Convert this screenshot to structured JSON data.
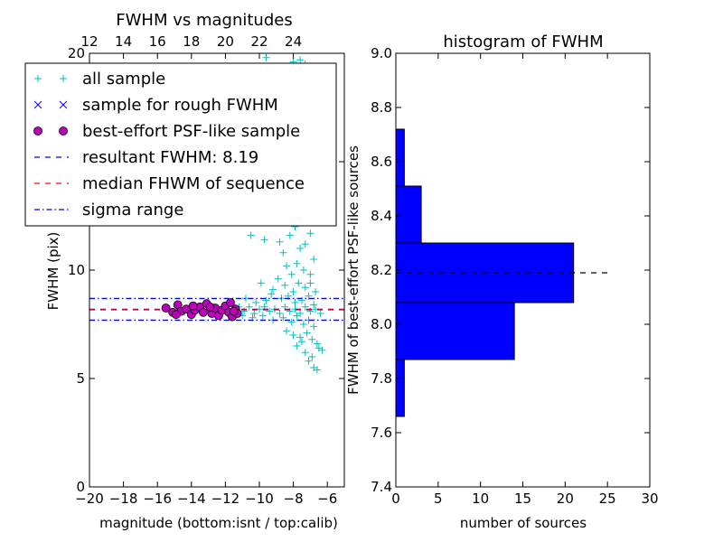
{
  "figure": {
    "background": "#ffffff"
  },
  "chart_data": [
    {
      "type": "scatter",
      "title": "FWHM vs magnitudes",
      "xlabel": "magnitude (bottom:isnt / top:calib)",
      "ylabel": "FWHM (pix)",
      "xlim": [
        -20,
        -5
      ],
      "ylim": [
        0,
        20
      ],
      "xticks": [
        -20,
        -18,
        -16,
        -14,
        -12,
        -10,
        -8,
        -6
      ],
      "xtick_labels": [
        "−20",
        "−18",
        "−16",
        "−14",
        "−12",
        "−10",
        "−8",
        "−6"
      ],
      "yticks": [
        0,
        5,
        10,
        15,
        20
      ],
      "ytick_labels": [
        "0",
        "5",
        "10",
        "15",
        "20"
      ],
      "top_axis": {
        "offset_from_bottom": 32,
        "ticks": [
          12,
          14,
          16,
          18,
          20,
          22,
          24
        ],
        "tick_labels": [
          "12",
          "14",
          "16",
          "18",
          "20",
          "22",
          "24"
        ]
      },
      "grid": false,
      "legend_position": "upper-left",
      "legend": [
        {
          "label": "all sample",
          "marker": "plus",
          "color": "#00bfbf"
        },
        {
          "label": "sample for rough FWHM",
          "marker": "x",
          "color": "#0000ff"
        },
        {
          "label": "best-effort PSF-like sample",
          "marker": "circle",
          "color": "#bf00bf"
        },
        {
          "label": "resultant FWHM: 8.19",
          "marker": "dashed-line",
          "color": "#0000ff"
        },
        {
          "label": "median FHWM of sequence",
          "marker": "dashed-line",
          "color": "#ff0000"
        },
        {
          "label": "sigma range",
          "marker": "dashdot-line",
          "color": "#0000ff"
        }
      ],
      "series": [
        {
          "name": "all sample",
          "marker": "plus",
          "color": "#00bfbf",
          "points": [
            [
              -9.8,
              19.2
            ],
            [
              -9.6,
              19.8
            ],
            [
              -9.1,
              19.4
            ],
            [
              -8.7,
              18.6
            ],
            [
              -8.2,
              19.0
            ],
            [
              -8.0,
              19.6
            ],
            [
              -7.6,
              19.7
            ],
            [
              -7.3,
              19.5
            ],
            [
              -7.1,
              19.3
            ],
            [
              -9.5,
              16.6
            ],
            [
              -9.0,
              15.0
            ],
            [
              -8.8,
              14.6
            ],
            [
              -7.9,
              15.4
            ],
            [
              -7.7,
              14.3
            ],
            [
              -7.4,
              13.2
            ],
            [
              -6.8,
              14.6
            ],
            [
              -7.2,
              15.8
            ],
            [
              -6.9,
              13.4
            ],
            [
              -10.5,
              11.6
            ],
            [
              -9.7,
              11.4
            ],
            [
              -8.8,
              11.3
            ],
            [
              -8.2,
              11.6
            ],
            [
              -8.6,
              10.8
            ],
            [
              -7.9,
              12.0
            ],
            [
              -7.5,
              12.4
            ],
            [
              -7.2,
              13.0
            ],
            [
              -6.9,
              12.4
            ],
            [
              -7.0,
              11.7
            ],
            [
              -7.3,
              11.2
            ],
            [
              -7.6,
              11.0
            ],
            [
              -8.4,
              10.2
            ],
            [
              -8.1,
              9.8
            ],
            [
              -7.8,
              10.3
            ],
            [
              -7.4,
              10.0
            ],
            [
              -7.0,
              9.8
            ],
            [
              -6.8,
              10.5
            ],
            [
              -9.9,
              9.4
            ],
            [
              -9.2,
              9.1
            ],
            [
              -8.9,
              9.6
            ],
            [
              -8.5,
              9.3
            ],
            [
              -8.0,
              9.0
            ],
            [
              -7.7,
              9.4
            ],
            [
              -7.3,
              9.2
            ],
            [
              -7.0,
              9.4
            ],
            [
              -6.7,
              9.0
            ],
            [
              -10.8,
              8.7
            ],
            [
              -10.2,
              8.5
            ],
            [
              -9.6,
              8.6
            ],
            [
              -9.3,
              8.9
            ],
            [
              -8.7,
              8.7
            ],
            [
              -8.3,
              8.8
            ],
            [
              -7.9,
              8.5
            ],
            [
              -7.5,
              8.6
            ],
            [
              -7.1,
              8.8
            ],
            [
              -6.8,
              8.4
            ],
            [
              -11.2,
              8.3
            ],
            [
              -10.9,
              8.1
            ],
            [
              -10.6,
              8.3
            ],
            [
              -10.3,
              8.0
            ],
            [
              -10.0,
              8.2
            ],
            [
              -9.7,
              8.3
            ],
            [
              -9.4,
              8.1
            ],
            [
              -9.1,
              8.2
            ],
            [
              -8.8,
              8.0
            ],
            [
              -8.5,
              8.3
            ],
            [
              -8.2,
              8.1
            ],
            [
              -7.9,
              8.2
            ],
            [
              -7.6,
              8.0
            ],
            [
              -7.3,
              8.3
            ],
            [
              -7.0,
              8.1
            ],
            [
              -6.7,
              8.2
            ],
            [
              -6.4,
              8.0
            ],
            [
              -11.0,
              7.9
            ],
            [
              -10.4,
              7.8
            ],
            [
              -9.8,
              7.9
            ],
            [
              -9.2,
              7.7
            ],
            [
              -8.6,
              7.8
            ],
            [
              -8.1,
              7.6
            ],
            [
              -7.8,
              7.9
            ],
            [
              -7.4,
              7.5
            ],
            [
              -7.1,
              7.7
            ],
            [
              -6.8,
              7.4
            ],
            [
              -8.4,
              7.2
            ],
            [
              -8.0,
              7.0
            ],
            [
              -7.6,
              6.9
            ],
            [
              -7.2,
              7.1
            ],
            [
              -6.9,
              6.8
            ],
            [
              -6.6,
              6.6
            ],
            [
              -7.8,
              6.5
            ],
            [
              -7.3,
              6.2
            ],
            [
              -6.9,
              6.0
            ],
            [
              -6.5,
              6.4
            ],
            [
              -7.1,
              5.8
            ],
            [
              -6.8,
              5.5
            ],
            [
              -6.6,
              5.4
            ],
            [
              -7.5,
              6.7
            ],
            [
              -6.3,
              6.3
            ],
            [
              -13.0,
              8.4
            ],
            [
              -12.2,
              8.0
            ],
            [
              -14.4,
              8.1
            ],
            [
              -15.5,
              8.3
            ]
          ]
        },
        {
          "name": "best-effort PSF-like sample",
          "marker": "circle",
          "color": "#bf00bf",
          "points": [
            [
              -15.5,
              8.25
            ],
            [
              -15.1,
              8.05
            ],
            [
              -14.8,
              8.4
            ],
            [
              -14.6,
              8.1
            ],
            [
              -14.3,
              8.2
            ],
            [
              -14.0,
              7.95
            ],
            [
              -13.8,
              8.15
            ],
            [
              -13.5,
              8.3
            ],
            [
              -13.3,
              8.05
            ],
            [
              -13.1,
              8.45
            ],
            [
              -12.8,
              8.0
            ],
            [
              -12.6,
              8.25
            ],
            [
              -12.4,
              7.9
            ],
            [
              -12.2,
              8.15
            ],
            [
              -12.0,
              8.35
            ],
            [
              -11.8,
              8.05
            ],
            [
              -11.7,
              8.5
            ],
            [
              -11.6,
              7.85
            ],
            [
              -11.4,
              8.2
            ],
            [
              -11.3,
              8.0
            ],
            [
              -13.9,
              8.35
            ],
            [
              -14.9,
              7.95
            ],
            [
              -12.9,
              8.3
            ],
            [
              -11.5,
              8.1
            ]
          ]
        }
      ],
      "hlines": [
        {
          "name": "resultant FWHM: 8.19",
          "y": 8.19,
          "color": "#0000ff",
          "style": "dashed"
        },
        {
          "name": "median FHWM of sequence",
          "y": 8.17,
          "color": "#ff0000",
          "style": "dashed"
        },
        {
          "name": "sigma range",
          "y": 8.69,
          "color": "#0000ff",
          "style": "dashdot"
        },
        {
          "name": "sigma range",
          "y": 7.69,
          "color": "#0000ff",
          "style": "dashdot"
        }
      ]
    },
    {
      "type": "bar",
      "orientation": "horizontal",
      "title": "histogram of FWHM",
      "xlabel": "number of sources",
      "ylabel": "FWHM of best-effort PSF-like sources",
      "xlim": [
        0,
        30
      ],
      "ylim": [
        7.4,
        9.0
      ],
      "xticks": [
        0,
        5,
        10,
        15,
        20,
        25,
        30
      ],
      "xtick_labels": [
        "0",
        "5",
        "10",
        "15",
        "20",
        "25",
        "30"
      ],
      "yticks": [
        7.4,
        7.6,
        7.8,
        8.0,
        8.2,
        8.4,
        8.6,
        8.8,
        9.0
      ],
      "ytick_labels": [
        "7.4",
        "7.6",
        "7.8",
        "8.0",
        "8.2",
        "8.4",
        "8.6",
        "8.8",
        "9.0"
      ],
      "grid": false,
      "color": "#0000ff",
      "bins": [
        {
          "from": 7.66,
          "to": 7.87,
          "count": 1
        },
        {
          "from": 7.87,
          "to": 8.08,
          "count": 14
        },
        {
          "from": 8.08,
          "to": 8.3,
          "count": 21
        },
        {
          "from": 8.3,
          "to": 8.51,
          "count": 3
        },
        {
          "from": 8.51,
          "to": 8.72,
          "count": 1
        }
      ],
      "hline": {
        "y": 8.19,
        "x_from": 0,
        "x_to": 25.5,
        "color": "#000000",
        "style": "dashed"
      }
    }
  ]
}
